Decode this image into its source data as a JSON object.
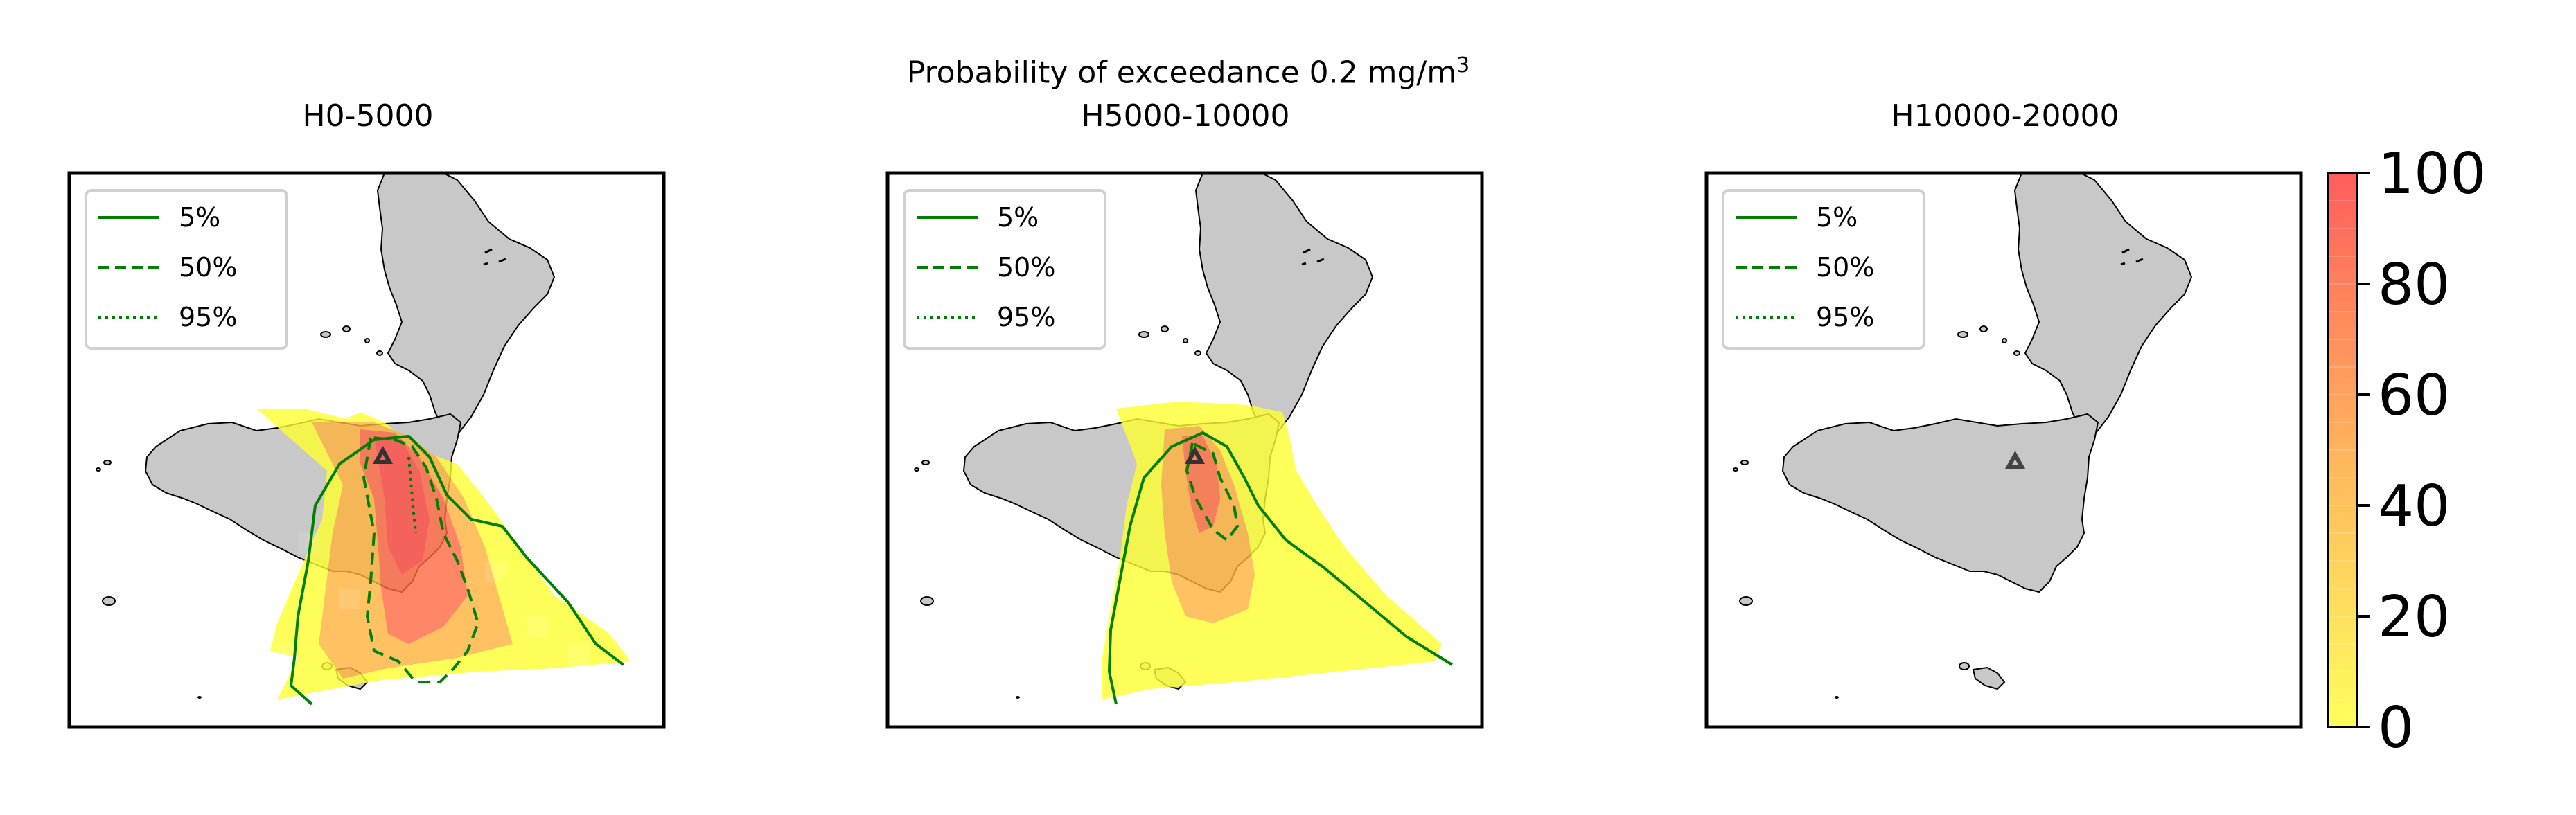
{
  "figure": {
    "suptitle_main": "Probability of exceedance 0.2 mg/m",
    "suptitle_sup": "3"
  },
  "panels": [
    {
      "title": "H0-5000",
      "has_cloud": true
    },
    {
      "title": "H5000-10000",
      "has_cloud": true
    },
    {
      "title": "H10000-20000",
      "has_cloud": false
    }
  ],
  "legend": {
    "entries": [
      {
        "label": "5%",
        "style": "solid"
      },
      {
        "label": "50%",
        "style": "dashed"
      },
      {
        "label": "95%",
        "style": "dotted"
      }
    ],
    "placement": "upper-left",
    "contour_color": "#008000"
  },
  "colorbar": {
    "ticks": [
      "0",
      "20",
      "40",
      "60",
      "80",
      "100"
    ],
    "range": [
      0,
      100
    ],
    "colors": [
      "#ffff40",
      "#ffa040",
      "#ff4040"
    ]
  },
  "map": {
    "land_color": "#c8c8c8",
    "vent_marker": "triangle-icon"
  }
}
